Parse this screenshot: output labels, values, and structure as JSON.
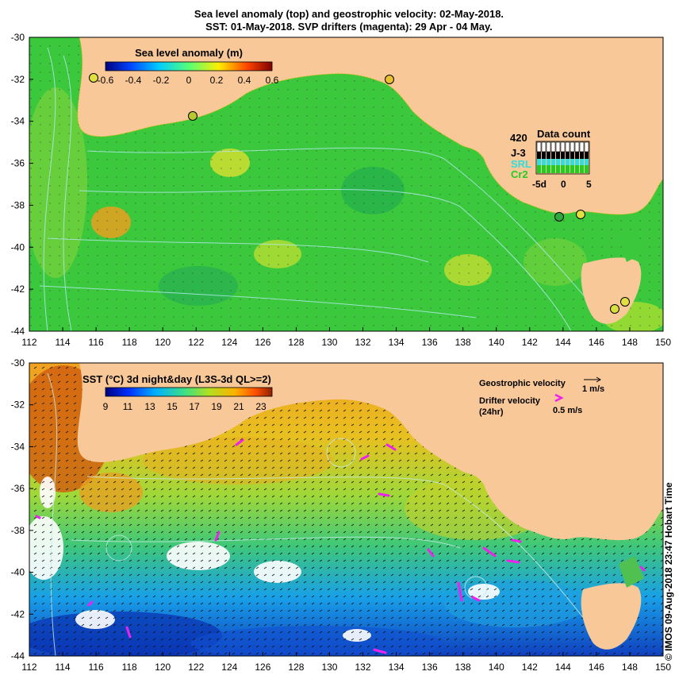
{
  "title": {
    "line1": "Sea level anomaly (top) and geostrophic velocity: 02-May-2018.",
    "line2": "SST: 01-May-2018. SVP drifters (magenta): 29 Apr - 04 May."
  },
  "top_map": {
    "colorbar_label": "Sea level anomaly (m)",
    "colorbar_ticks": [
      "-0.6",
      "-0.4",
      "-0.2",
      "0",
      "0.2",
      "0.4",
      "0.6"
    ],
    "lat_ticks": [
      "-30",
      "-32",
      "-34",
      "-36",
      "-38",
      "-40",
      "-42",
      "-44"
    ],
    "lon_ticks": [
      "112",
      "114",
      "116",
      "118",
      "120",
      "122",
      "124",
      "126",
      "128",
      "130",
      "132",
      "134",
      "136",
      "138",
      "140",
      "142",
      "144",
      "146",
      "148",
      "150"
    ],
    "data_count": {
      "title": "Data count",
      "max_label": "420",
      "missions": [
        {
          "name": "J-3",
          "color": "#000000"
        },
        {
          "name": "SRL",
          "color": "#33dddd"
        },
        {
          "name": "Cr2",
          "color": "#22cc22"
        }
      ],
      "axis_ticks": [
        "-5d",
        "0",
        "5"
      ]
    }
  },
  "bottom_map": {
    "colorbar_label": "SST (°C) 3d night&day (L3S-3d QL>=2)",
    "colorbar_ticks": [
      "9",
      "11",
      "13",
      "15",
      "17",
      "19",
      "21",
      "23"
    ],
    "lat_ticks": [
      "-30",
      "-32",
      "-34",
      "-36",
      "-38",
      "-40",
      "-42",
      "-44"
    ],
    "lon_ticks": [
      "112",
      "114",
      "116",
      "118",
      "120",
      "122",
      "124",
      "126",
      "128",
      "130",
      "132",
      "134",
      "136",
      "138",
      "140",
      "142",
      "144",
      "146",
      "148",
      "150"
    ],
    "legend": {
      "geo_label": "Geostrophic velocity",
      "geo_scale": "1 m/s",
      "drifter_label": "Drifter velocity",
      "drifter_sub": "(24hr)",
      "drifter_scale": "0.5 m/s"
    }
  },
  "credit": "© IMOS 09-Aug-2018 23:47 Hobart Time",
  "colors": {
    "land": "#f8c898",
    "slaGreen": "#3cc83c",
    "drifters": "#ee22ee"
  }
}
